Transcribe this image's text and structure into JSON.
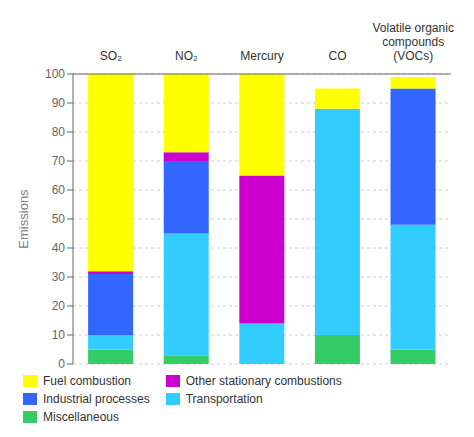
{
  "chart_data": {
    "type": "bar",
    "stacked": true,
    "categories": [
      "SO₂",
      "NO₂",
      "Mercury",
      "CO",
      "Volatile organic\ncompounds\n(VOCs)"
    ],
    "series": [
      {
        "name": "Miscellaneous",
        "color": "#33CC66",
        "values": [
          5,
          3,
          0,
          10,
          5
        ]
      },
      {
        "name": "Transportation",
        "color": "#33CCFF",
        "values": [
          5,
          42,
          14,
          78,
          43
        ]
      },
      {
        "name": "Industrial processes",
        "color": "#3366FF",
        "values": [
          21,
          25,
          0,
          0,
          47
        ]
      },
      {
        "name": "Other stationary combustions",
        "color": "#CC00CC",
        "values": [
          1,
          3,
          51,
          0,
          0
        ]
      },
      {
        "name": "Fuel combustion",
        "color": "#FFFF00",
        "values": [
          68,
          27,
          35,
          7,
          4
        ]
      }
    ],
    "ylabel": "Emissions",
    "ylim": [
      0,
      100
    ],
    "yticks": [
      0,
      10,
      20,
      30,
      40,
      50,
      60,
      70,
      80,
      90,
      100
    ],
    "grid": true,
    "legend": "bottom"
  }
}
